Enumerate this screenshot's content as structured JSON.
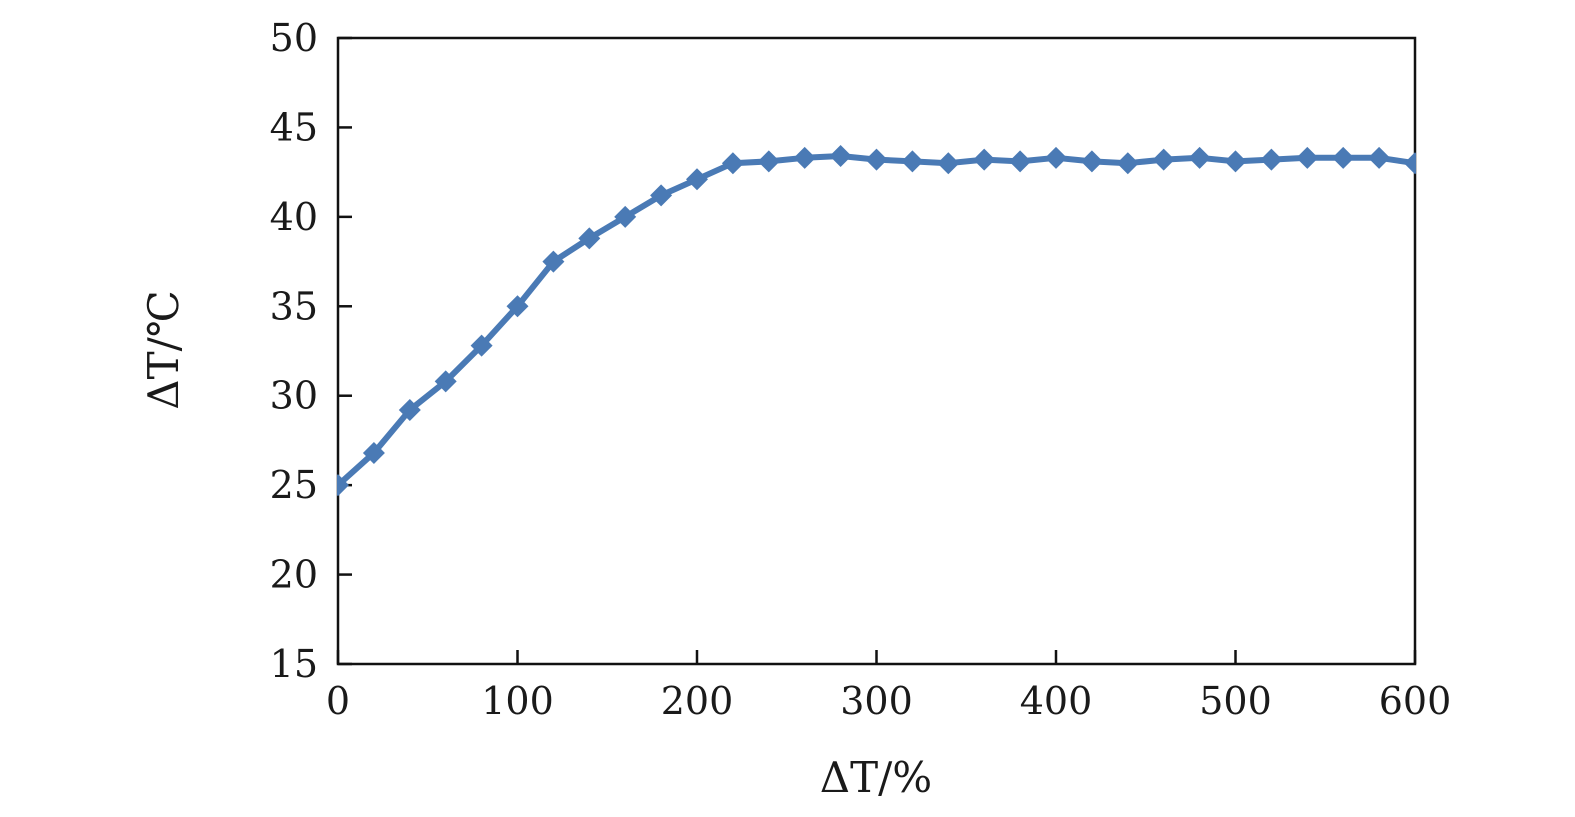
{
  "chart_data": {
    "type": "line",
    "xlabel": "ΔT/%",
    "ylabel": "ΔT/℃",
    "xlim": [
      0,
      600
    ],
    "ylim": [
      15,
      50
    ],
    "xticks": [
      "0",
      "100",
      "200",
      "300",
      "400",
      "500",
      "600"
    ],
    "yticks": [
      "15",
      "20",
      "25",
      "30",
      "35",
      "40",
      "45",
      "50"
    ],
    "grid": false,
    "marker": "diamond",
    "series_color": "#4a7ab5",
    "series": [
      {
        "x": [
          0,
          20,
          40,
          60,
          80,
          100,
          120,
          140,
          160,
          180,
          200,
          220,
          240,
          260,
          280,
          300,
          320,
          340,
          360,
          380,
          400,
          420,
          440,
          460,
          480,
          500,
          520,
          540,
          560,
          580,
          600
        ],
        "y": [
          25.0,
          26.8,
          29.2,
          30.8,
          32.8,
          35.0,
          37.5,
          38.8,
          40.0,
          41.2,
          42.1,
          43.0,
          43.1,
          43.3,
          43.4,
          43.2,
          43.1,
          43.0,
          43.2,
          43.1,
          43.3,
          43.1,
          43.0,
          43.2,
          43.3,
          43.1,
          43.2,
          43.3,
          43.3,
          43.3,
          43.0
        ]
      }
    ]
  }
}
